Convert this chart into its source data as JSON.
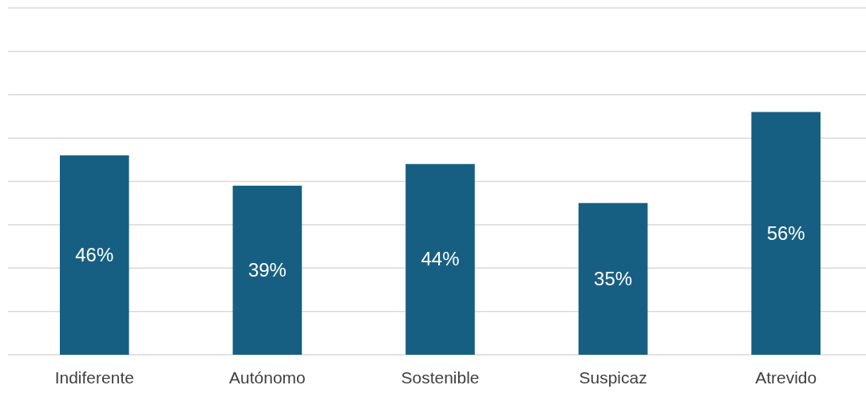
{
  "chart_data": {
    "type": "bar",
    "categories": [
      "Indiferente",
      "Autónomo",
      "Sostenible",
      "Suspicaz",
      "Atrevido"
    ],
    "values": [
      46,
      39,
      44,
      35,
      56
    ],
    "value_labels": [
      "46%",
      "39%",
      "44%",
      "35%",
      "56%"
    ],
    "color": "#175f82",
    "grid": "y",
    "tick_labels": "x",
    "ylim": [
      0,
      80
    ],
    "yticks": [
      {
        "value": 0,
        "label": null
      },
      {
        "value": 10,
        "label": null
      },
      {
        "value": 20,
        "label": null
      },
      {
        "value": 30,
        "label": null
      },
      {
        "value": 40,
        "label": null
      },
      {
        "value": 50,
        "label": null
      },
      {
        "value": 60,
        "label": null
      },
      {
        "value": 70,
        "label": null
      },
      {
        "value": 80,
        "label": null
      }
    ]
  }
}
